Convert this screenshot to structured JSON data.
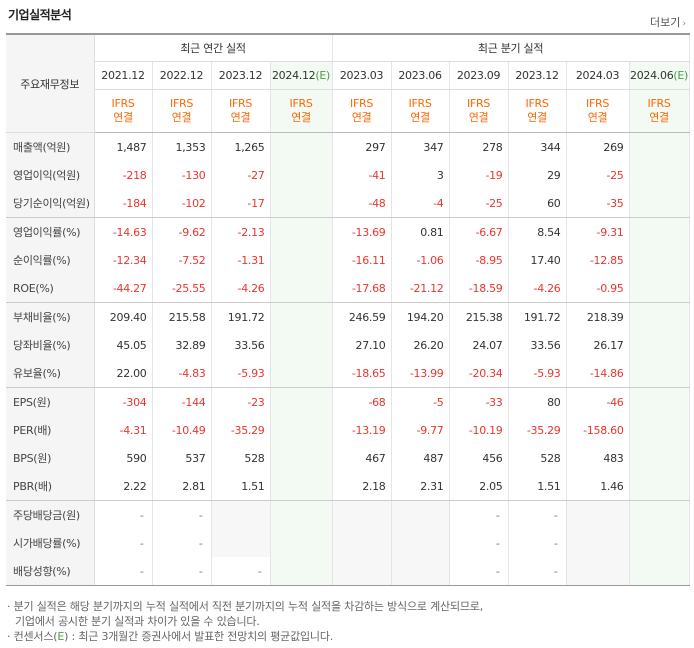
{
  "header": {
    "title": "기업실적분석",
    "more": "더보기"
  },
  "table": {
    "col_header": "주요재무정보",
    "groups": [
      "최근 연간 실적",
      "최근 분기 실적"
    ],
    "annual_periods": [
      "2021.12",
      "2022.12",
      "2023.12",
      "2024.12"
    ],
    "quarter_periods": [
      "2023.03",
      "2023.06",
      "2023.09",
      "2023.12",
      "2024.03",
      "2024.06"
    ],
    "estimate_mark": "(E)",
    "ifrs_line1": "IFRS",
    "ifrs_line2": "연결",
    "rows": [
      {
        "label": "매출액(억원)",
        "annual": [
          "1,487",
          "1,353",
          "1,265",
          ""
        ],
        "quarter": [
          "297",
          "347",
          "278",
          "344",
          "269",
          ""
        ]
      },
      {
        "label": "영업이익(억원)",
        "annual": [
          "-218",
          "-130",
          "-27",
          ""
        ],
        "quarter": [
          "-41",
          "3",
          "-19",
          "29",
          "-25",
          ""
        ]
      },
      {
        "label": "당기순이익(억원)",
        "annual": [
          "-184",
          "-102",
          "-17",
          ""
        ],
        "quarter": [
          "-48",
          "-4",
          "-25",
          "60",
          "-35",
          ""
        ]
      },
      {
        "label": "영업이익률(%)",
        "annual": [
          "-14.63",
          "-9.62",
          "-2.13",
          ""
        ],
        "quarter": [
          "-13.69",
          "0.81",
          "-6.67",
          "8.54",
          "-9.31",
          ""
        ]
      },
      {
        "label": "순이익률(%)",
        "annual": [
          "-12.34",
          "-7.52",
          "-1.31",
          ""
        ],
        "quarter": [
          "-16.11",
          "-1.06",
          "-8.95",
          "17.40",
          "-12.85",
          ""
        ]
      },
      {
        "label": "ROE(%)",
        "annual": [
          "-44.27",
          "-25.55",
          "-4.26",
          ""
        ],
        "quarter": [
          "-17.68",
          "-21.12",
          "-18.59",
          "-4.26",
          "-0.95",
          ""
        ]
      },
      {
        "label": "부채비율(%)",
        "annual": [
          "209.40",
          "215.58",
          "191.72",
          ""
        ],
        "quarter": [
          "246.59",
          "194.20",
          "215.38",
          "191.72",
          "218.39",
          ""
        ]
      },
      {
        "label": "당좌비율(%)",
        "annual": [
          "45.05",
          "32.89",
          "33.56",
          ""
        ],
        "quarter": [
          "27.10",
          "26.20",
          "24.07",
          "33.56",
          "26.17",
          ""
        ]
      },
      {
        "label": "유보율(%)",
        "annual": [
          "22.00",
          "-4.83",
          "-5.93",
          ""
        ],
        "quarter": [
          "-18.65",
          "-13.99",
          "-20.34",
          "-5.93",
          "-14.86",
          ""
        ]
      },
      {
        "label": "EPS(원)",
        "annual": [
          "-304",
          "-144",
          "-23",
          ""
        ],
        "quarter": [
          "-68",
          "-5",
          "-33",
          "80",
          "-46",
          ""
        ]
      },
      {
        "label": "PER(배)",
        "annual": [
          "-4.31",
          "-10.49",
          "-35.29",
          ""
        ],
        "quarter": [
          "-13.19",
          "-9.77",
          "-10.19",
          "-35.29",
          "-158.60",
          ""
        ]
      },
      {
        "label": "BPS(원)",
        "annual": [
          "590",
          "537",
          "528",
          ""
        ],
        "quarter": [
          "467",
          "487",
          "456",
          "528",
          "483",
          ""
        ]
      },
      {
        "label": "PBR(배)",
        "annual": [
          "2.22",
          "2.81",
          "1.51",
          ""
        ],
        "quarter": [
          "2.18",
          "2.31",
          "2.05",
          "1.51",
          "1.46",
          ""
        ]
      },
      {
        "label": "주당배당금(원)",
        "annual": [
          "-",
          "-",
          "",
          ""
        ],
        "quarter": [
          "",
          "",
          "-",
          "-",
          "",
          ""
        ]
      },
      {
        "label": "시가배당률(%)",
        "annual": [
          "-",
          "-",
          "",
          ""
        ],
        "quarter": [
          "",
          "",
          "-",
          "-",
          "",
          ""
        ]
      },
      {
        "label": "배당성향(%)",
        "annual": [
          "-",
          "-",
          "-",
          ""
        ],
        "quarter": [
          "",
          "",
          "-",
          "-",
          "",
          ""
        ]
      }
    ],
    "nodata_cells": {
      "주당배당금(원)": {
        "annual": [
          2,
          3
        ],
        "quarter": [
          0,
          1,
          4,
          5
        ]
      },
      "시가배당률(%)": {
        "annual": [
          2,
          3
        ],
        "quarter": [
          0,
          1,
          4,
          5
        ]
      },
      "배당성향(%)": {
        "annual": [
          3
        ],
        "quarter": [
          0,
          1,
          4,
          5
        ]
      }
    }
  },
  "notes": {
    "line1": "· 분기 실적은 해당 분기까지의 누적 실적에서 직전 분기까지의 누적 실적을 차감하는 방식으로 계산되므로,",
    "line2": "  기업에서 공시한 분기 실적과 차이가 있을 수 있습니다.",
    "line3_prefix": "· 컨센서스(",
    "line3_e": "E",
    "line3_suffix": ") : 최근 3개월간 증권사에서 발표한 전망치의 평균값입니다."
  },
  "colors": {
    "negative": "#e8362e",
    "ifrs": "#ff6600",
    "estimate_mark": "#4a9d4a"
  }
}
